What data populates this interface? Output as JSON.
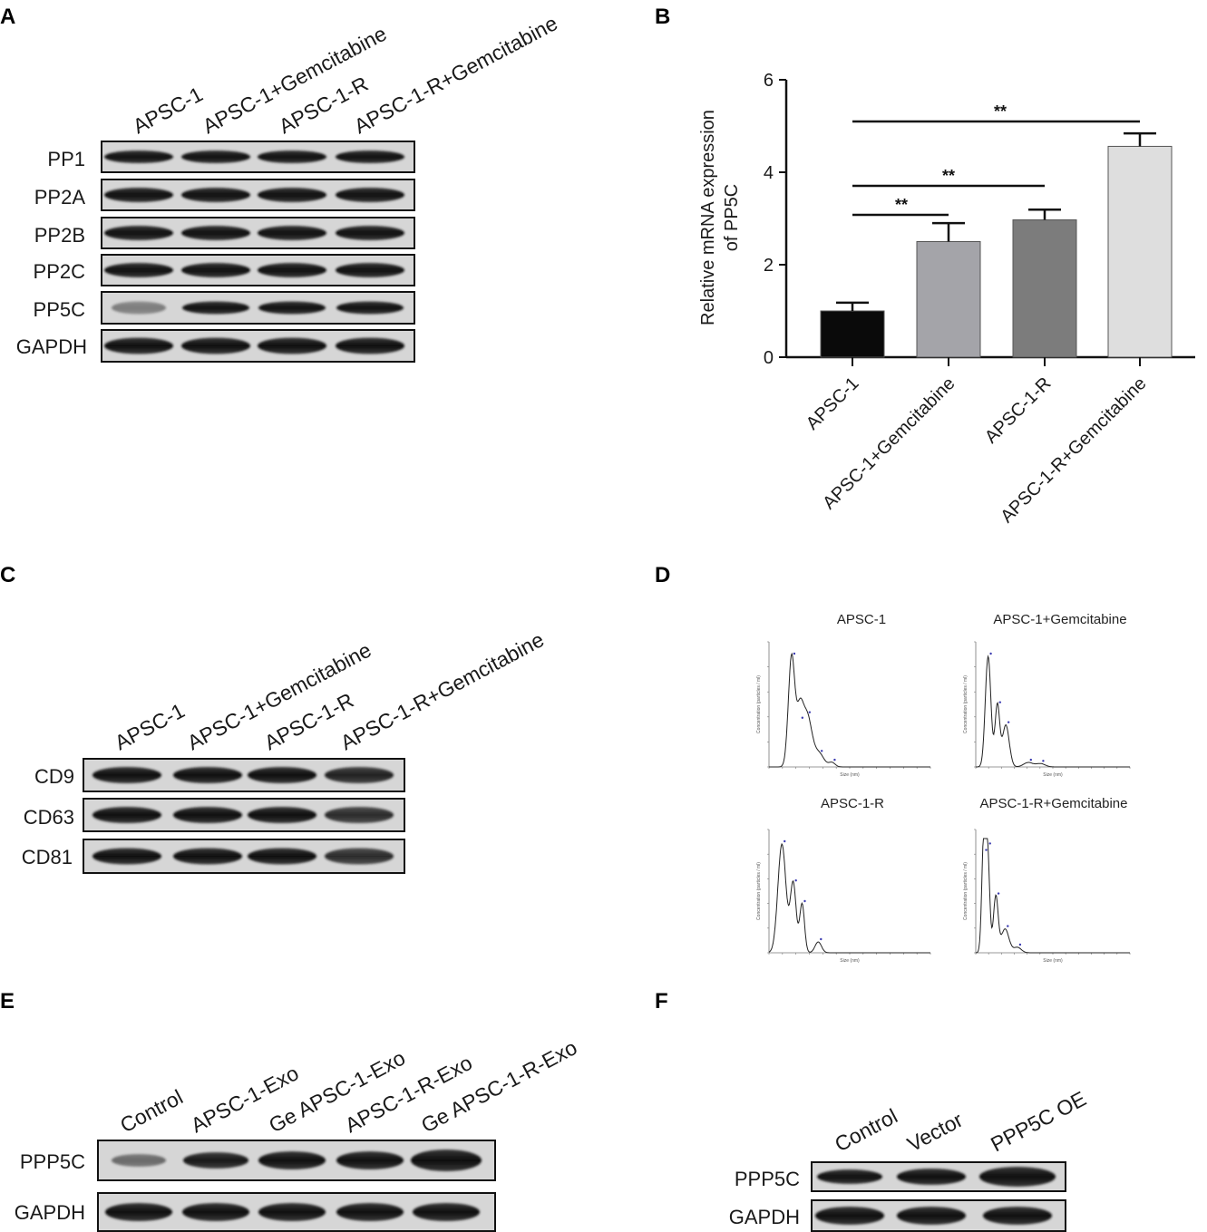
{
  "panels": {
    "A": {
      "letter": "A",
      "lanes": [
        "APSC-1",
        "APSC-1+Gemcitabine",
        "APSC-1-R",
        "APSC-1-R+Gemcitabine"
      ],
      "rows": [
        "PP1",
        "PP2A",
        "PP2B",
        "PP2C",
        "PP5C",
        "GAPDH"
      ]
    },
    "B": {
      "letter": "B"
    },
    "C": {
      "letter": "C",
      "lanes": [
        "APSC-1",
        "APSC-1+Gemcitabine",
        "APSC-1-R",
        "APSC-1-R+Gemcitabine"
      ],
      "rows": [
        "CD9",
        "CD63",
        "CD81"
      ]
    },
    "D": {
      "letter": "D",
      "titles": [
        "APSC-1",
        "APSC-1+Gemcitabine",
        "APSC-1-R",
        "APSC-1-R+Gemcitabine"
      ],
      "ylabel": "Concentration (particles / ml)",
      "xlabel": "Size (nm)"
    },
    "E": {
      "letter": "E",
      "lanes": [
        "Control",
        "APSC-1-Exo",
        "Ge APSC-1-Exo",
        "APSC-1-R-Exo",
        "Ge APSC-1-R-Exo"
      ],
      "rows": [
        "PPP5C",
        "GAPDH"
      ]
    },
    "F": {
      "letter": "F",
      "lanes": [
        "Control",
        "Vector",
        "PPP5C OE"
      ],
      "rows": [
        "PPP5C",
        "GAPDH"
      ]
    }
  },
  "chart_data": {
    "type": "bar",
    "categories": [
      "APSC-1",
      "APSC-1+Gemcitabine",
      "APSC-1-R",
      "APSC-1-R+Gemcitabine"
    ],
    "values": [
      1.0,
      2.5,
      2.97,
      4.56
    ],
    "errors": [
      0.18,
      0.4,
      0.22,
      0.28
    ],
    "ylabel_line1": "Relative mRNA expression",
    "ylabel_line2": "of PP5C",
    "ylim": [
      0,
      6
    ],
    "yticks": [
      0,
      2,
      4,
      6
    ],
    "bar_colors": [
      "#0a0a0a",
      "#a4a4a9",
      "#7c7c7c",
      "#dedede"
    ],
    "significance": [
      {
        "from": 0,
        "to": 1,
        "label": "**"
      },
      {
        "from": 0,
        "to": 2,
        "label": "**"
      },
      {
        "from": 0,
        "to": 3,
        "label": "**"
      }
    ]
  }
}
